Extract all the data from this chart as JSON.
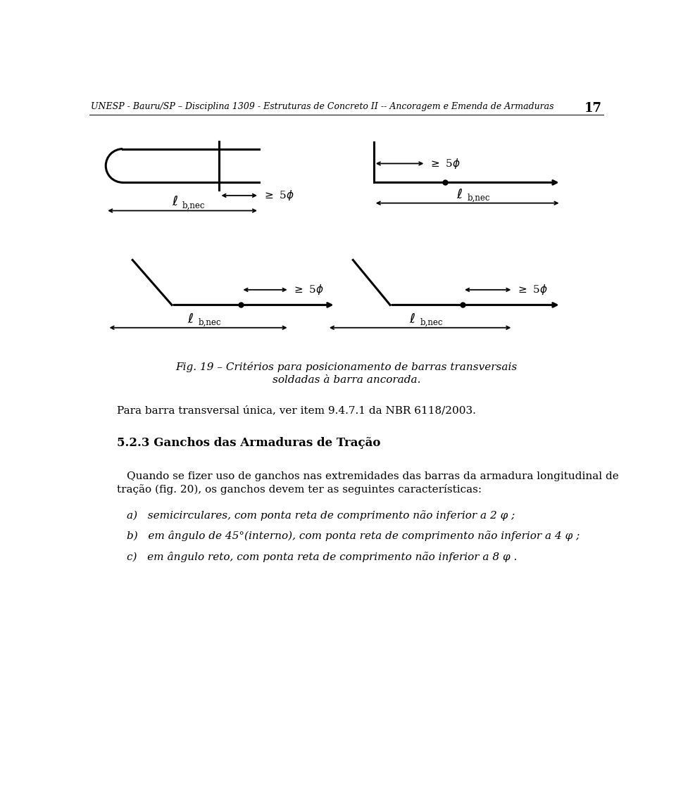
{
  "header": "UNESP - Bauru/SP – Disciplina 1309 - Estruturas de Concreto II -- Ancoragem e Emenda de Armaduras",
  "page_num": "17",
  "fig_caption_line1": "Fig. 19 – Critérios para posicionamento de barras transversais",
  "fig_caption_line2": "soldadas à barra ancorada.",
  "para_text": "Para barra transversal única, ver item 9.4.7.1 da NBR 6118/2003.",
  "section_title": "5.2.3 Ganchos das Armaduras de Tração",
  "body_line1": "Quando se fizer uso de ganchos nas extremidades das barras da armadura longitudinal de",
  "body_line2": "tração (fig. 20), os ganchos devem ter as seguintes características:",
  "item_a": "a)   semicirculares, com ponta reta de comprimento não inferior a 2 φ ;",
  "item_b": "b)   em ângulo de 45°(interno), com ponta reta de comprimento não inferior a 4 φ ;",
  "item_c": "c)   em ângulo reto, com ponta reta de comprimento não inferior a 8 φ .",
  "background_color": "#ffffff",
  "line_color": "#000000",
  "lw": 2.2
}
